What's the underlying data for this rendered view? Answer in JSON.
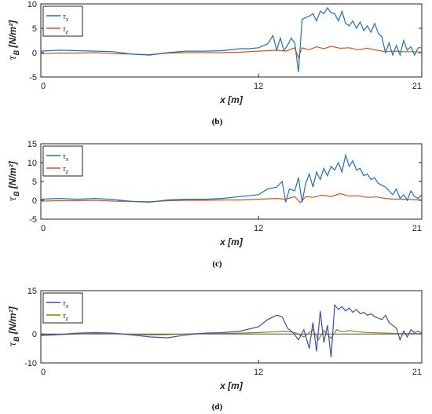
{
  "chart_data": [
    {
      "type": "line",
      "caption": "(b)",
      "xlabel": "x [m]",
      "ylabel": "τ_B [N/m²]",
      "xlim": [
        0,
        21
      ],
      "ylim": [
        -5,
        10
      ],
      "xticks": [
        "0",
        "12",
        "21"
      ],
      "yticks": [
        "-5",
        "0",
        "5",
        "10"
      ],
      "legend_position": "top-left",
      "series": [
        {
          "name": "τx",
          "color": "#1f6fc0",
          "x": [
            0,
            1,
            2,
            3,
            4,
            5,
            6,
            7,
            8,
            9,
            10,
            11,
            11.5,
            12,
            12.5,
            12.8,
            13.0,
            13.2,
            13.4,
            13.6,
            13.8,
            14.0,
            14.2,
            14.4,
            14.6,
            14.8,
            15.0,
            15.2,
            15.4,
            15.6,
            15.8,
            16.0,
            16.2,
            16.4,
            16.6,
            16.8,
            17.0,
            17.2,
            17.4,
            17.6,
            17.8,
            18.0,
            18.2,
            18.4,
            18.6,
            18.8,
            19.0,
            19.2,
            19.4,
            19.6,
            19.8,
            20.0,
            20.2,
            20.4,
            20.6,
            20.8,
            21.0
          ],
          "y": [
            0.3,
            0.5,
            0.4,
            0.3,
            0.2,
            -0.3,
            -0.5,
            0,
            0.3,
            0.3,
            0.4,
            0.8,
            0.8,
            1.0,
            1.8,
            3.5,
            0.5,
            3.0,
            0.4,
            1.5,
            3.0,
            2.0,
            -4.0,
            6.8,
            7.2,
            7.5,
            8.0,
            6.5,
            8.5,
            8.0,
            9.2,
            8.2,
            8.0,
            6.5,
            8.5,
            6.0,
            5.5,
            6.5,
            5.0,
            6.3,
            4.5,
            5.5,
            4.2,
            6.0,
            4.0,
            3.2,
            0,
            2.0,
            -0.5,
            1.5,
            -0.5,
            2.5,
            0.5,
            1.2,
            -0.5,
            1.0,
            1.0
          ]
        },
        {
          "name": "τz",
          "color": "#d95319",
          "x": [
            0,
            1,
            2,
            3,
            4,
            5,
            6,
            7,
            8,
            9,
            10,
            11,
            12,
            13,
            13.5,
            14,
            14.2,
            14.4,
            14.8,
            15.2,
            15.6,
            16,
            16.5,
            17,
            17.5,
            18,
            18.5,
            19,
            19.5,
            20,
            20.5,
            21
          ],
          "y": [
            -0.2,
            -0.1,
            -0.1,
            0,
            -0.2,
            -0.3,
            -0.4,
            -0.1,
            0,
            0,
            0,
            0.1,
            0.3,
            0.5,
            0.3,
            1.0,
            -1.0,
            1.0,
            0.6,
            1.2,
            0.8,
            1.3,
            0.9,
            1.0,
            0.6,
            0.9,
            0.5,
            0.2,
            0.3,
            0.2,
            0.2,
            0.1
          ]
        }
      ]
    },
    {
      "type": "line",
      "caption": "(c)",
      "xlabel": "x [m]",
      "ylabel": "τ_B [N/m²]",
      "xlim": [
        0,
        21
      ],
      "ylim": [
        -5,
        15
      ],
      "xticks": [
        "0",
        "12",
        "21"
      ],
      "yticks": [
        "-5",
        "0",
        "5",
        "10",
        "15"
      ],
      "legend_position": "top-left",
      "series": [
        {
          "name": "τx",
          "color": "#1f6fc0",
          "x": [
            0,
            1,
            2,
            3,
            4,
            5,
            6,
            7,
            8,
            9,
            10,
            11,
            12,
            12.5,
            13,
            13.3,
            13.5,
            13.7,
            14.0,
            14.2,
            14.4,
            14.6,
            14.8,
            15.0,
            15.2,
            15.4,
            15.6,
            15.8,
            16.0,
            16.2,
            16.4,
            16.6,
            16.8,
            17.0,
            17.2,
            17.4,
            17.6,
            17.8,
            18.0,
            18.2,
            18.4,
            18.6,
            18.8,
            19.0,
            19.2,
            19.4,
            19.6,
            19.8,
            20.0,
            20.2,
            20.4,
            20.6,
            20.8,
            21.0
          ],
          "y": [
            0.3,
            0.5,
            0.3,
            0.5,
            0.2,
            -0.3,
            -0.5,
            0.1,
            0.3,
            0.3,
            0.5,
            1.0,
            1.5,
            3.0,
            3.5,
            5.0,
            -0.5,
            3.0,
            2.5,
            6.0,
            -0.5,
            4.5,
            7.0,
            3.5,
            7.5,
            5.5,
            8.5,
            6.5,
            9.0,
            8.0,
            10.0,
            7.5,
            12.0,
            9.0,
            10.5,
            8.0,
            8.5,
            6.5,
            7.0,
            5.5,
            6.0,
            4.5,
            4.0,
            3.5,
            2.5,
            1.5,
            3.0,
            0.5,
            1.5,
            0.0,
            2.5,
            1.0,
            0.5,
            1.5
          ]
        },
        {
          "name": "τz",
          "color": "#d95319",
          "x": [
            0,
            1,
            2,
            3,
            4,
            5,
            6,
            7,
            8,
            9,
            10,
            11,
            12,
            13,
            13.5,
            14,
            14.3,
            14.6,
            15,
            15.5,
            16,
            16.5,
            17,
            17.5,
            18,
            18.5,
            19,
            19.5,
            20,
            20.5,
            21
          ],
          "y": [
            -0.2,
            -0.1,
            -0.1,
            0,
            -0.2,
            -0.3,
            -0.4,
            -0.1,
            0,
            0,
            0.1,
            0.1,
            0.3,
            0.5,
            0.3,
            1.0,
            -0.6,
            1.0,
            0.8,
            1.4,
            1.0,
            1.8,
            1.1,
            1.2,
            0.8,
            0.9,
            0.5,
            0.3,
            0.3,
            0.2,
            0.1
          ]
        }
      ]
    },
    {
      "type": "line",
      "caption": "(d)",
      "xlabel": "x [m]",
      "ylabel": "τ_B [N/m²]",
      "xlim": [
        0,
        21
      ],
      "ylim": [
        -10,
        15
      ],
      "xticks": [
        "0",
        "12",
        "21"
      ],
      "yticks": [
        "-10",
        "0",
        "15"
      ],
      "legend_position": "top-left",
      "series": [
        {
          "name": "τx",
          "color": "#3a4fb4",
          "x": [
            0,
            1,
            2,
            3,
            4,
            5,
            6,
            7,
            8,
            9,
            10,
            11,
            12,
            12.5,
            13,
            13.3,
            13.6,
            13.9,
            14.2,
            14.5,
            14.8,
            15.0,
            15.2,
            15.4,
            15.6,
            15.8,
            16.0,
            16.2,
            16.4,
            16.6,
            16.8,
            17.0,
            17.2,
            17.4,
            17.6,
            17.8,
            18.0,
            18.2,
            18.4,
            18.6,
            18.8,
            19.0,
            19.2,
            19.4,
            19.6,
            19.8,
            20.0,
            20.2,
            20.4,
            20.6,
            20.8,
            21.0
          ],
          "y": [
            -0.5,
            -0.2,
            0.3,
            0.5,
            0.3,
            -0.3,
            -1.0,
            -1.3,
            -0.3,
            0.3,
            0.5,
            1.0,
            2.5,
            5.0,
            6.5,
            6.0,
            2.0,
            0.5,
            -2.0,
            1.5,
            -5.0,
            4.0,
            -6.0,
            8.0,
            -3.0,
            3.0,
            -8.0,
            10.0,
            8.5,
            9.5,
            8.0,
            9.0,
            7.5,
            8.5,
            7.0,
            7.5,
            6.5,
            7.0,
            6.0,
            5.5,
            5.0,
            6.5,
            4.0,
            3.0,
            2.0,
            -2.0,
            1.0,
            -1.0,
            1.5,
            0.5,
            1.0,
            0.3
          ]
        },
        {
          "name": "τz",
          "color": "#8a7d12",
          "x": [
            0,
            1,
            2,
            3,
            4,
            5,
            6,
            7,
            8,
            9,
            10,
            11,
            12,
            13,
            13.5,
            14,
            14.5,
            15,
            15.3,
            15.6,
            16,
            16.3,
            16.6,
            17,
            17.5,
            18,
            18.5,
            19,
            19.5,
            20,
            20.5,
            21
          ],
          "y": [
            -0.3,
            -0.2,
            0,
            0.2,
            0.1,
            -0.1,
            -0.3,
            -0.2,
            0,
            0.2,
            0.2,
            0.3,
            0.5,
            0.8,
            1.0,
            0.5,
            -1.0,
            1.5,
            -2.0,
            1.2,
            -1.5,
            1.5,
            0.8,
            1.2,
            0.8,
            0.5,
            0.4,
            0.3,
            0.2,
            0.1,
            0.2,
            0.1
          ]
        }
      ]
    }
  ]
}
